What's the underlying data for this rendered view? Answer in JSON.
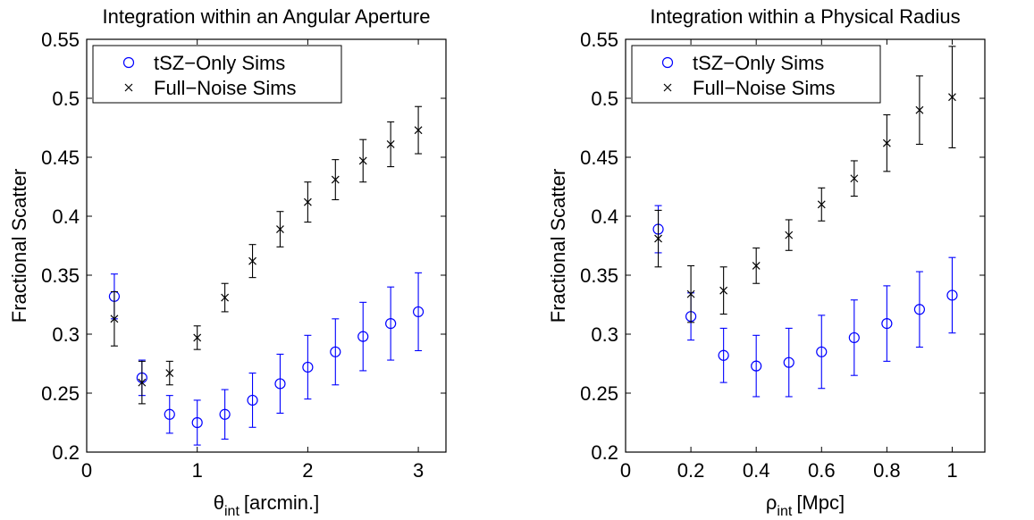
{
  "chart_data": [
    {
      "type": "scatter",
      "title": "Integration within an Angular Aperture",
      "xlabel": {
        "symbol": "θ",
        "sub": "int",
        "unit": "[arcmin.]"
      },
      "ylabel": "Fractional Scatter",
      "xlim": [
        0,
        3.25
      ],
      "ylim": [
        0.2,
        0.55
      ],
      "xticks": [
        0,
        1,
        2,
        3
      ],
      "yticks": [
        0.2,
        0.25,
        0.3,
        0.35,
        0.4,
        0.45,
        0.5,
        0.55
      ],
      "legend_position": "top-left",
      "series": [
        {
          "name": "tSZ−Only Sims",
          "marker": "circle",
          "color": "#0000ff",
          "x": [
            0.25,
            0.5,
            0.75,
            1.0,
            1.25,
            1.5,
            1.75,
            2.0,
            2.25,
            2.5,
            2.75,
            3.0
          ],
          "y": [
            0.332,
            0.263,
            0.232,
            0.225,
            0.232,
            0.244,
            0.258,
            0.272,
            0.285,
            0.298,
            0.309,
            0.319
          ],
          "err": [
            0.019,
            0.015,
            0.016,
            0.019,
            0.021,
            0.023,
            0.025,
            0.027,
            0.028,
            0.029,
            0.031,
            0.033
          ]
        },
        {
          "name": "Full−Noise Sims",
          "marker": "x",
          "color": "#000000",
          "x": [
            0.25,
            0.5,
            0.75,
            1.0,
            1.25,
            1.5,
            1.75,
            2.0,
            2.25,
            2.5,
            2.75,
            3.0
          ],
          "y": [
            0.313,
            0.259,
            0.267,
            0.297,
            0.331,
            0.362,
            0.389,
            0.412,
            0.431,
            0.447,
            0.461,
            0.473
          ],
          "err": [
            0.023,
            0.018,
            0.01,
            0.01,
            0.012,
            0.014,
            0.015,
            0.017,
            0.017,
            0.018,
            0.019,
            0.02
          ]
        }
      ]
    },
    {
      "type": "scatter",
      "title": "Integration within a Physical Radius",
      "xlabel": {
        "symbol": "ρ",
        "sub": "int",
        "unit": "[Mpc]"
      },
      "ylabel": "Fractional Scatter",
      "xlim": [
        0,
        1.1
      ],
      "ylim": [
        0.2,
        0.55
      ],
      "xticks": [
        0,
        0.2,
        0.4,
        0.6,
        0.8,
        1
      ],
      "yticks": [
        0.2,
        0.25,
        0.3,
        0.35,
        0.4,
        0.45,
        0.5,
        0.55
      ],
      "legend_position": "top-left",
      "series": [
        {
          "name": "tSZ−Only Sims",
          "marker": "circle",
          "color": "#0000ff",
          "x": [
            0.1,
            0.2,
            0.3,
            0.4,
            0.5,
            0.6,
            0.7,
            0.8,
            0.9,
            1.0
          ],
          "y": [
            0.389,
            0.315,
            0.282,
            0.273,
            0.276,
            0.285,
            0.297,
            0.309,
            0.321,
            0.333
          ],
          "err": [
            0.02,
            0.02,
            0.023,
            0.026,
            0.029,
            0.031,
            0.032,
            0.032,
            0.032,
            0.032
          ]
        },
        {
          "name": "Full−Noise Sims",
          "marker": "x",
          "color": "#000000",
          "x": [
            0.1,
            0.2,
            0.3,
            0.4,
            0.5,
            0.6,
            0.7,
            0.8,
            0.9,
            1.0
          ],
          "y": [
            0.381,
            0.334,
            0.337,
            0.358,
            0.384,
            0.41,
            0.432,
            0.462,
            0.49,
            0.501
          ],
          "err": [
            0.024,
            0.024,
            0.02,
            0.015,
            0.013,
            0.014,
            0.015,
            0.024,
            0.029,
            0.043
          ]
        }
      ]
    }
  ]
}
